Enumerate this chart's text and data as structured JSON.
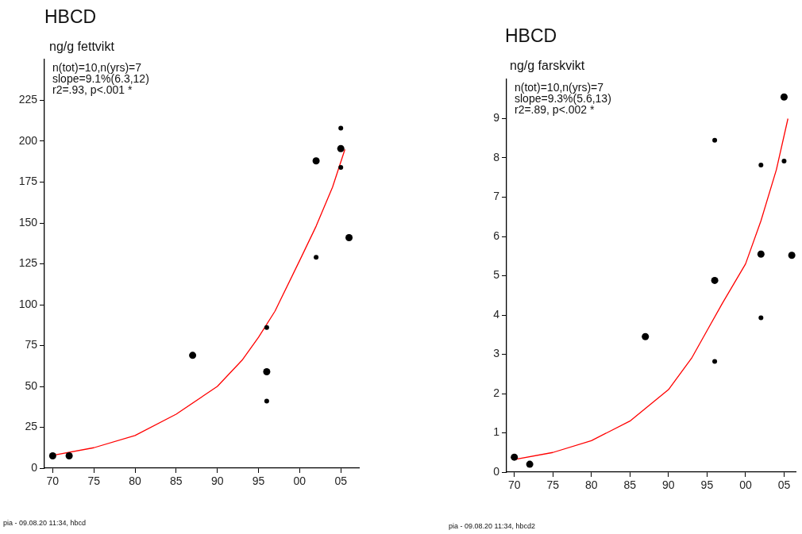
{
  "chart_data": [
    {
      "type": "scatter",
      "title": "HBCD",
      "ylabel": "ng/g fettvikt",
      "annotations": [
        "n(tot)=10,n(yrs)=7",
        "slope=9.1%(6.3,12)",
        "r2=.93, p<.001 *",
        "pia - 09.08.20  11:34,  hbcd"
      ],
      "xlim": [
        1969,
        2007.2
      ],
      "xticks": [
        {
          "value": 1970,
          "label": "70"
        },
        {
          "value": 1975,
          "label": "75"
        },
        {
          "value": 1980,
          "label": "80"
        },
        {
          "value": 1985,
          "label": "85"
        },
        {
          "value": 1990,
          "label": "90"
        },
        {
          "value": 1995,
          "label": "95"
        },
        {
          "value": 2000,
          "label": "00"
        },
        {
          "value": 2005,
          "label": "05"
        }
      ],
      "ylim": [
        0,
        250
      ],
      "yticks": [
        0,
        25,
        50,
        75,
        100,
        125,
        150,
        175,
        200,
        225
      ],
      "grid": false,
      "legend": false,
      "series": [
        {
          "marker": "circle",
          "color": "#000000",
          "x": [
            1970,
            1972,
            1987,
            1996,
            2002,
            2005,
            2006
          ],
          "values": [
            7.5,
            7.5,
            69,
            59,
            188,
            195.5,
            141
          ]
        },
        {
          "marker": "circle",
          "color": "#000000",
          "x": [
            1996,
            1996,
            2002,
            2005,
            2005
          ],
          "values": [
            86,
            41,
            129,
            208,
            184
          ]
        },
        {
          "type": "line",
          "marker": "none",
          "color": "#ff0000",
          "x": [
            1970,
            1975,
            1980,
            1985,
            1990,
            1993,
            1995,
            1997,
            2000,
            2002,
            2004,
            2005.5
          ],
          "values": [
            7.8,
            12.5,
            20,
            33,
            50,
            66,
            80,
            96,
            127,
            148,
            172,
            195
          ]
        }
      ]
    },
    {
      "type": "scatter",
      "title": "HBCD",
      "ylabel": "ng/g farskvikt",
      "annotations": [
        "n(tot)=10,n(yrs)=7",
        "slope=9.3%(5.6,13)",
        "r2=.89, p<.002 *",
        "pia - 09.08.20  11:34,  hbcd2"
      ],
      "xlim": [
        1969,
        2006.5
      ],
      "xticks": [
        {
          "value": 1970,
          "label": "70"
        },
        {
          "value": 1975,
          "label": "75"
        },
        {
          "value": 1980,
          "label": "80"
        },
        {
          "value": 1985,
          "label": "85"
        },
        {
          "value": 1990,
          "label": "90"
        },
        {
          "value": 1995,
          "label": "95"
        },
        {
          "value": 2000,
          "label": "00"
        },
        {
          "value": 2005,
          "label": "05"
        }
      ],
      "ylim": [
        0,
        10
      ],
      "yticks": [
        0,
        1,
        2,
        3,
        4,
        5,
        6,
        7,
        8,
        9
      ],
      "grid": false,
      "legend": false,
      "series": [
        {
          "marker": "circle",
          "color": "#000000",
          "x": [
            1970,
            1972,
            1987,
            1996,
            2002,
            2005,
            2006
          ],
          "values": [
            0.38,
            0.2,
            3.45,
            4.88,
            5.55,
            9.55,
            5.52
          ]
        },
        {
          "marker": "circle",
          "color": "#000000",
          "x": [
            1996,
            1996,
            2002,
            2002,
            2005
          ],
          "values": [
            8.45,
            2.82,
            7.82,
            3.93,
            7.92
          ]
        },
        {
          "type": "line",
          "marker": "none",
          "color": "#ff0000",
          "x": [
            1970,
            1975,
            1980,
            1985,
            1990,
            1993,
            1995,
            1997,
            2000,
            2002,
            2004,
            2005.5
          ],
          "values": [
            0.32,
            0.5,
            0.8,
            1.3,
            2.1,
            2.9,
            3.6,
            4.3,
            5.3,
            6.4,
            7.7,
            9.0
          ]
        }
      ]
    }
  ]
}
